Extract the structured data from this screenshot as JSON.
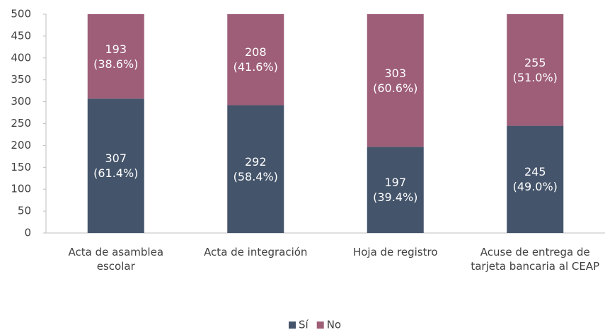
{
  "chart_data": {
    "type": "stacked_bar",
    "categories": [
      "Acta de asamblea escolar",
      "Acta de integración",
      "Hoja de registro",
      "Acuse de entrega de tarjeta bancaria al CEAP"
    ],
    "series": [
      {
        "name": "Sí",
        "color": "#44546a",
        "values": [
          307,
          292,
          197,
          245
        ],
        "value_labels": [
          "307\n(61.4%)",
          "292\n(58.4%)",
          "197\n(39.4%)",
          "245\n(49.0%)"
        ]
      },
      {
        "name": "No",
        "color": "#9e5e78",
        "values": [
          193,
          208,
          303,
          255
        ],
        "value_labels": [
          "193\n(38.6%)",
          "208\n(41.6%)",
          "303\n(60.6%)",
          "255\n(51.0%)"
        ]
      }
    ],
    "ylim": [
      0,
      500
    ],
    "yticks": [
      0,
      50,
      100,
      150,
      200,
      250,
      300,
      350,
      400,
      450,
      500
    ],
    "grid": false,
    "legend": "bottom"
  }
}
